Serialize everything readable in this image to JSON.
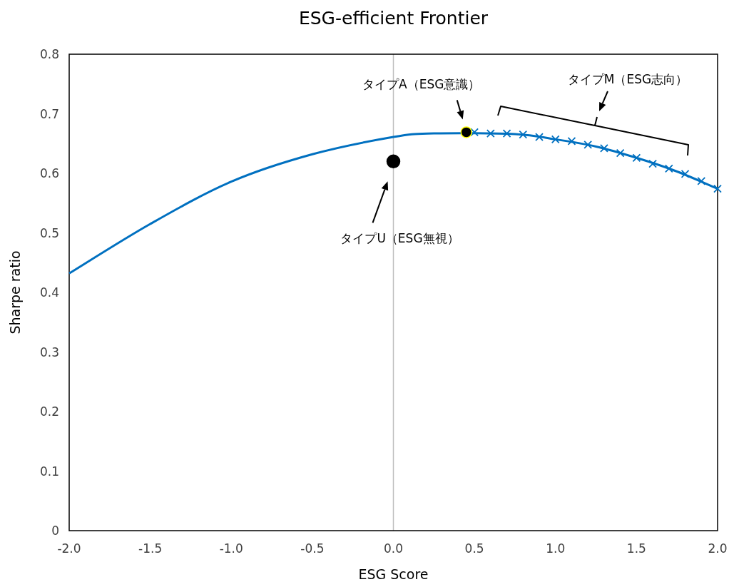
{
  "chart_data": {
    "type": "line",
    "title": "ESG-efficient Frontier",
    "xlabel": "ESG Score",
    "ylabel": "Sharpe ratio",
    "xlim": [
      -2,
      2
    ],
    "ylim": [
      0,
      0.8
    ],
    "xticks": [
      {
        "value": -2,
        "label": "-2.0"
      },
      {
        "value": -1.5,
        "label": "-1.5"
      },
      {
        "value": -1,
        "label": "-1.0"
      },
      {
        "value": -0.5,
        "label": "-0.5"
      },
      {
        "value": 0,
        "label": "0.0"
      },
      {
        "value": 0.5,
        "label": "0.5"
      },
      {
        "value": 1,
        "label": "1.0"
      },
      {
        "value": 1.5,
        "label": "1.5"
      },
      {
        "value": 2,
        "label": "2.0"
      }
    ],
    "yticks": [
      0,
      0.1,
      0.2,
      0.3,
      0.4,
      0.5,
      0.6,
      0.7,
      0.8
    ],
    "series": [
      {
        "color": "#0070c0",
        "marker": "none",
        "x": [
          -2,
          -1.5,
          -1,
          -0.5,
          0,
          0.25,
          0.75,
          1.0,
          1.25,
          1.5,
          1.75,
          2.0
        ],
        "values": [
          0.432,
          0.515,
          0.586,
          0.632,
          0.661,
          0.667,
          0.666,
          0.657,
          0.645,
          0.626,
          0.603,
          0.574
        ]
      },
      {
        "type": "scatter",
        "color": "#0070c0",
        "marker": "cross",
        "x": [
          0.5,
          0.6,
          0.7,
          0.8,
          0.9,
          1.0,
          1.1,
          1.2,
          1.3,
          1.4,
          1.5,
          1.6,
          1.7,
          1.8,
          1.9,
          2.0
        ],
        "values": [
          0.669,
          0.667,
          0.667,
          0.665,
          0.661,
          0.657,
          0.654,
          0.648,
          0.642,
          0.634,
          0.626,
          0.616,
          0.608,
          0.599,
          0.587,
          0.574
        ]
      },
      {
        "type": "scatter",
        "color": "#000000",
        "marker": "circle",
        "x": [
          0
        ],
        "values": [
          0.62
        ]
      },
      {
        "type": "scatter",
        "color": "#000000",
        "marker": "circle",
        "x": [
          0.45
        ],
        "values": [
          0.669
        ]
      }
    ],
    "ref_lines": [
      {
        "axis": "x",
        "value": 0,
        "color": "#bfbfbf"
      }
    ],
    "annotations": [
      "タイプA（ESG意識）",
      "タイプU（ESG無視）",
      "タイプM（ESG志向）"
    ]
  }
}
